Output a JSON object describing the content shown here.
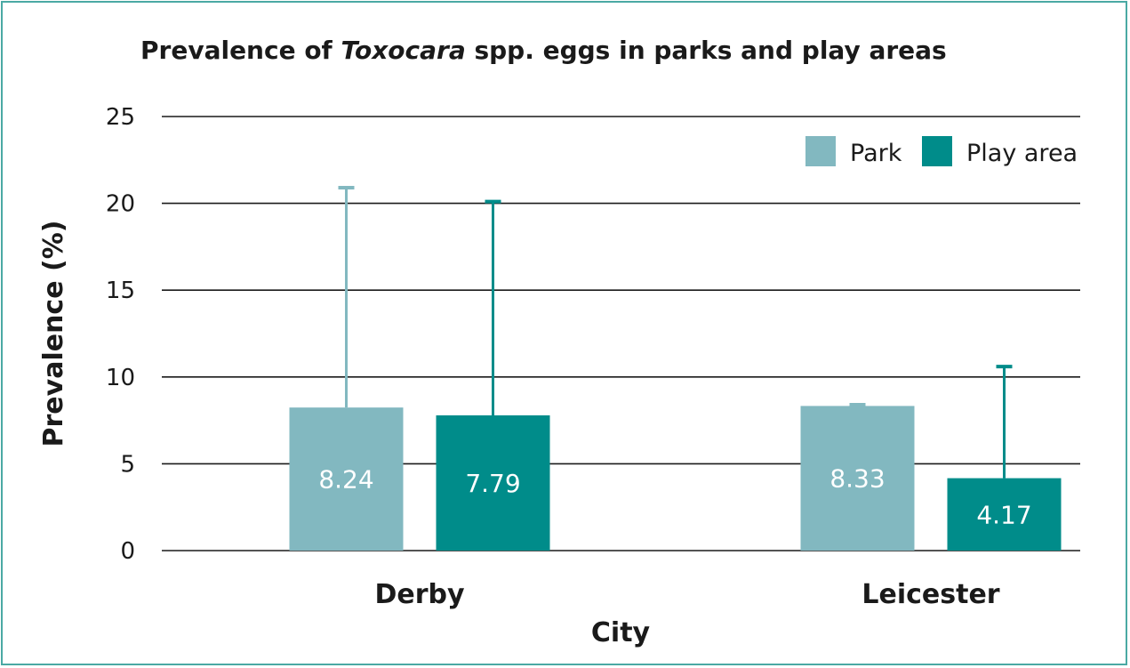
{
  "chart_data": {
    "type": "bar",
    "title_parts": [
      "Prevalence of ",
      "Toxocara",
      " spp. eggs in parks and play areas"
    ],
    "xlabel": "City",
    "ylabel": "Prevalence (%)",
    "categories": [
      "Derby",
      "Leicester"
    ],
    "series": [
      {
        "name": "Park",
        "color": "#82b8c0",
        "values": [
          8.24,
          8.33
        ],
        "error_upper": [
          20.9,
          8.4
        ]
      },
      {
        "name": "Play area",
        "color": "#008c8a",
        "values": [
          7.79,
          4.17
        ],
        "error_upper": [
          20.1,
          10.6
        ]
      }
    ],
    "data_labels": [
      [
        "8.24",
        "8.33"
      ],
      [
        "7.79",
        "4.17"
      ]
    ],
    "ylim": [
      0,
      25
    ],
    "yticks": [
      0,
      5,
      10,
      15,
      20,
      25
    ],
    "grid": true,
    "legend_position": "top-right"
  }
}
